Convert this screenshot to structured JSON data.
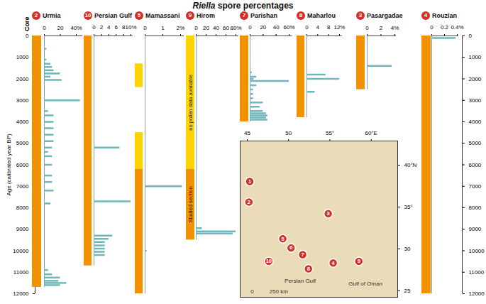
{
  "chart_data": [
    {
      "type": "bar",
      "orientation": "horizontal",
      "title": "Riella spore percentages",
      "ylabel": "Age (calibrated year BP)",
      "core_label": "Core",
      "color": "#6fb7bb",
      "ylim": [
        0,
        12000
      ],
      "yticks": [
        0,
        1000,
        2000,
        3000,
        4000,
        5000,
        6000,
        7000,
        8000,
        9000,
        10000,
        11000,
        12000
      ],
      "panels": [
        {
          "number": 2,
          "name": "Urmia",
          "xlim": [
            0,
            48
          ],
          "xticks": [
            0,
            20,
            {
              "value": 40,
              "label": "40%"
            }
          ],
          "core": [
            {
              "from": 0,
              "to": 11700,
              "color": "#f39200"
            }
          ],
          "ages": [
            600,
            1100,
            1300,
            1450,
            1600,
            1750,
            1900,
            2050,
            3000,
            3500,
            3700,
            4000,
            4300,
            4600,
            4900,
            5200,
            5400,
            5600,
            6000,
            6500,
            6800,
            7200,
            7800,
            10900,
            11100,
            11250,
            11400,
            11500,
            11600
          ],
          "values": [
            3,
            3,
            8,
            10,
            12,
            20,
            8,
            22,
            45,
            5,
            12,
            12,
            12,
            12,
            12,
            10,
            5,
            10,
            10,
            10,
            10,
            12,
            8,
            5,
            10,
            20,
            18,
            28,
            20
          ]
        },
        {
          "number": 10,
          "name": "Persian Gulf",
          "xlim": [
            0,
            10.5
          ],
          "xticks": [
            0,
            2,
            4,
            6,
            8,
            {
              "value": 10,
              "label": "10%"
            }
          ],
          "core": [
            {
              "from": 0,
              "to": 10700,
              "color": "#f39200"
            }
          ],
          "ages": [
            5200,
            7700,
            9300,
            9450,
            9600,
            9750,
            9900,
            10050,
            10200
          ],
          "values": [
            7,
            10,
            5,
            4,
            3,
            3,
            3,
            3,
            3
          ]
        },
        {
          "number": 5,
          "name": "Mamassani",
          "xlim": [
            0,
            2.2
          ],
          "xticks": [
            0,
            1,
            {
              "value": 2,
              "label": "2%"
            }
          ],
          "core": [
            {
              "from": 1300,
              "to": 2400,
              "color": "#ffd400"
            },
            {
              "from": 4500,
              "to": 6200,
              "color": "#ffd400"
            },
            {
              "from": 6200,
              "to": 12000,
              "color": "#f39200"
            }
          ],
          "ages": [
            7000,
            10000
          ],
          "values": [
            2.1,
            0.1
          ]
        },
        {
          "number": 9,
          "name": "Hirom",
          "xlim": [
            0,
            85
          ],
          "xticks": [
            0,
            20,
            40,
            60,
            {
              "value": 80,
              "label": "80%"
            }
          ],
          "core": [
            {
              "from": 0,
              "to": 6200,
              "color": "#ffd400",
              "label": "no pollen data available"
            },
            {
              "from": 6200,
              "to": 9500,
              "color": "#f39200",
              "label": "Studied section"
            }
          ],
          "ages": [
            8950,
            9100,
            9200
          ],
          "values": [
            12,
            80,
            74
          ]
        },
        {
          "number": 7,
          "name": "Parishan",
          "xlim": [
            0,
            65
          ],
          "xticks": [
            0,
            20,
            40,
            {
              "value": 60,
              "label": "60%"
            }
          ],
          "core": [
            {
              "from": 0,
              "to": 4000,
              "color": "#f39200"
            }
          ],
          "ages": [
            300,
            700,
            1000,
            1200,
            1700,
            1900,
            2000,
            2100,
            2300,
            2500,
            2700,
            2900,
            3100,
            3300,
            3500,
            3600,
            3700,
            3800,
            3900
          ],
          "values": [
            1,
            1,
            1,
            1,
            3,
            10,
            6,
            60,
            10,
            5,
            5,
            5,
            20,
            15,
            20,
            25,
            27,
            25,
            27
          ]
        },
        {
          "number": 8,
          "name": "Maharlou",
          "xlim": [
            0,
            13
          ],
          "xticks": [
            0,
            4,
            8,
            {
              "value": 12,
              "label": "12%"
            }
          ],
          "core": [
            {
              "from": 0,
              "to": 3800,
              "color": "#f39200"
            }
          ],
          "ages": [
            1800,
            2000,
            2600
          ],
          "values": [
            7,
            12,
            3
          ]
        },
        {
          "number": 3,
          "name": "Pasargadae",
          "xlim": [
            0,
            4.2
          ],
          "xticks": [
            0,
            2,
            {
              "value": 4,
              "label": "4%"
            }
          ],
          "core": [
            {
              "from": 0,
              "to": 2500,
              "color": "#f39200"
            }
          ],
          "ages": [
            1400
          ],
          "values": [
            3.6
          ]
        },
        {
          "number": 4,
          "name": "Rouzian",
          "xlim": [
            0,
            0.42
          ],
          "xticks": [
            0,
            0.2,
            {
              "value": 0.4,
              "label": "0.4%"
            }
          ],
          "core": [
            {
              "from": 0,
              "to": 12000,
              "color": "#f39200"
            }
          ],
          "ages": [
            100
          ],
          "values": [
            0.38
          ]
        }
      ]
    },
    {
      "type": "map",
      "color": "#d2302b",
      "grid": false,
      "xlim": [
        44.14,
        63.2
      ],
      "xticks": [
        45,
        50,
        {
          "value": 55,
          "label": "55°"
        },
        {
          "value": 60,
          "label": "60°E"
        }
      ],
      "ylim": [
        24.2,
        42.9
      ],
      "yticks": [
        {
          "value": 40,
          "label": "40°N"
        },
        {
          "value": 35,
          "label": "35°"
        },
        30,
        25
      ],
      "sites": [
        {
          "number": 1,
          "lon": 45.3,
          "lat": 38.05
        },
        {
          "number": 2,
          "lon": 45.2,
          "lat": 35.6
        },
        {
          "number": 3,
          "lon": 54.8,
          "lat": 34.2
        },
        {
          "number": 4,
          "lon": 55.4,
          "lat": 28.3
        },
        {
          "number": 5,
          "lon": 49.3,
          "lat": 31.2
        },
        {
          "number": 6,
          "lon": 50.3,
          "lat": 30.1
        },
        {
          "number": 7,
          "lon": 51.7,
          "lat": 29.3
        },
        {
          "number": 8,
          "lon": 52.4,
          "lat": 27.6
        },
        {
          "number": 9,
          "lon": 58.5,
          "lat": 28.5
        },
        {
          "number": 10,
          "lon": 47.6,
          "lat": 28.5
        }
      ],
      "annotations": [
        {
          "text": "Persian Gulf",
          "lon": 51.4,
          "lat": 26.2
        },
        {
          "text": "Gulf of Oman",
          "lon": 59.3,
          "lat": 25.8
        },
        {
          "text": "0",
          "lon": 45.6,
          "lat": 24.9
        },
        {
          "text": "250 km",
          "lon": 48.8,
          "lat": 24.9
        }
      ]
    }
  ]
}
